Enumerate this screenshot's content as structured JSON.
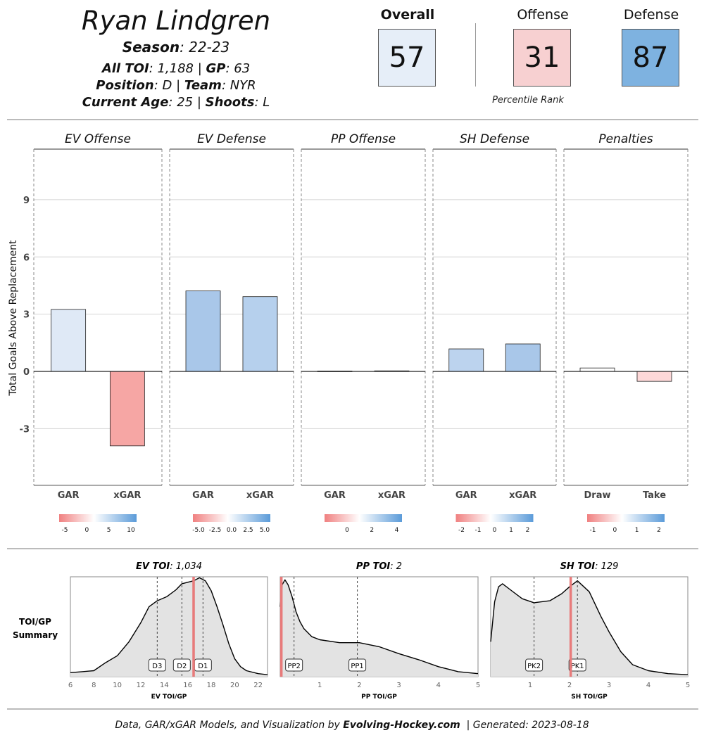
{
  "header": {
    "player_name": "Ryan Lindgren",
    "season": {
      "label": "Season",
      "value": ": 22-23"
    },
    "line2": [
      {
        "label": "All TOI",
        "value": ": 1,188 | "
      },
      {
        "label": "GP",
        "value": ": 63"
      }
    ],
    "line3": [
      {
        "label": "Position",
        "value": ": D | "
      },
      {
        "label": "Team",
        "value": ": NYR"
      }
    ],
    "line4": [
      {
        "label": "Current Age",
        "value": ": 25 | "
      },
      {
        "label": "Shoots",
        "value": ": L"
      }
    ]
  },
  "percentiles": {
    "caption": "Percentile Rank",
    "items": [
      {
        "label": "Overall",
        "value": 57,
        "color": "#e6eef8",
        "bold": true
      },
      {
        "label": "Offense",
        "value": 31,
        "color": "#f7d0d1",
        "bold": false
      },
      {
        "label": "Defense",
        "value": 87,
        "color": "#7eb2e0",
        "bold": false
      }
    ]
  },
  "chart_data": [
    {
      "type": "bar",
      "ylabel": "Total Goals Above Replacement",
      "yticks": [
        -3,
        0,
        3,
        6,
        9
      ],
      "ylim": [
        -5.97,
        11.65
      ],
      "grid": true,
      "panels": [
        {
          "title": "EV Offense",
          "categories": [
            "GAR",
            "xGAR"
          ],
          "values": [
            3.25,
            -3.9
          ],
          "colors": [
            "#dfe9f6",
            "#f6a6a4"
          ],
          "colorbar_ticks": [
            "-5",
            "0",
            "5",
            "10"
          ]
        },
        {
          "title": "EV Defense",
          "categories": [
            "GAR",
            "xGAR"
          ],
          "values": [
            4.22,
            3.92
          ],
          "colors": [
            "#a9c7e9",
            "#b6d0ed"
          ],
          "colorbar_ticks": [
            "-5.0",
            "-2.5",
            "0.0",
            "2.5",
            "5.0"
          ]
        },
        {
          "title": "PP Offense",
          "categories": [
            "GAR",
            "xGAR"
          ],
          "values": [
            0.02,
            0.03
          ],
          "colors": [
            "#f6f8fc",
            "#f2f6fb"
          ],
          "colorbar_ticks": [
            "0",
            "2",
            "4"
          ]
        },
        {
          "title": "SH Defense",
          "categories": [
            "GAR",
            "xGAR"
          ],
          "values": [
            1.18,
            1.44
          ],
          "colors": [
            "#bcd3ee",
            "#a9c7e9"
          ],
          "colorbar_ticks": [
            "-2",
            "-1",
            "0",
            "1",
            "2"
          ]
        },
        {
          "title": "Penalties",
          "categories": [
            "Draw",
            "Take"
          ],
          "values": [
            0.18,
            -0.52
          ],
          "colors": [
            "#ffffff",
            "#fdd8d8"
          ],
          "colorbar_ticks": [
            "-1",
            "0",
            "1",
            "2"
          ]
        }
      ],
      "colorscale": {
        "low": "#f08080",
        "mid": "#ffffff",
        "high": "#5b9bd9"
      }
    },
    {
      "type": "area",
      "row_label": [
        "TOI/GP",
        "Summary"
      ],
      "player_line_color": "#e87b7b",
      "panels": [
        {
          "title_bold": "EV TOI",
          "title_value": ": 1,034",
          "xlabel": "EV TOI/GP",
          "xlim": [
            6,
            22.8
          ],
          "xticks": [
            6,
            8,
            10,
            12,
            14,
            16,
            18,
            20,
            22
          ],
          "player_value": 16.5,
          "markers": [
            {
              "label": "D3",
              "x": 13.4
            },
            {
              "label": "D2",
              "x": 15.5
            },
            {
              "label": "D1",
              "x": 17.3
            }
          ],
          "density": [
            [
              6,
              0.04
            ],
            [
              7,
              0.05
            ],
            [
              8,
              0.06
            ],
            [
              9,
              0.14
            ],
            [
              10,
              0.21
            ],
            [
              11,
              0.35
            ],
            [
              12,
              0.54
            ],
            [
              12.7,
              0.7
            ],
            [
              13.4,
              0.76
            ],
            [
              14.2,
              0.8
            ],
            [
              15,
              0.87
            ],
            [
              15.5,
              0.93
            ],
            [
              16.5,
              0.96
            ],
            [
              17,
              0.99
            ],
            [
              17.5,
              0.96
            ],
            [
              18,
              0.86
            ],
            [
              18.5,
              0.7
            ],
            [
              19,
              0.52
            ],
            [
              19.5,
              0.33
            ],
            [
              20,
              0.18
            ],
            [
              20.5,
              0.1
            ],
            [
              21,
              0.06
            ],
            [
              22,
              0.03
            ],
            [
              22.8,
              0.02
            ]
          ]
        },
        {
          "title_bold": "PP TOI",
          "title_value": ": 2",
          "xlabel": "PP TOI/GP",
          "xlim": [
            0,
            5
          ],
          "xticks": [
            1,
            2,
            3,
            4,
            5
          ],
          "player_value": 0.03,
          "markers": [
            {
              "label": "PP2",
              "x": 0.35
            },
            {
              "label": "PP1",
              "x": 1.95
            }
          ],
          "density": [
            [
              0,
              0.7
            ],
            [
              0.05,
              0.92
            ],
            [
              0.12,
              0.97
            ],
            [
              0.2,
              0.92
            ],
            [
              0.3,
              0.8
            ],
            [
              0.4,
              0.65
            ],
            [
              0.5,
              0.55
            ],
            [
              0.6,
              0.48
            ],
            [
              0.8,
              0.4
            ],
            [
              1,
              0.37
            ],
            [
              1.5,
              0.34
            ],
            [
              2,
              0.34
            ],
            [
              2.5,
              0.3
            ],
            [
              3,
              0.23
            ],
            [
              3.5,
              0.17
            ],
            [
              4,
              0.1
            ],
            [
              4.5,
              0.05
            ],
            [
              5,
              0.03
            ]
          ]
        },
        {
          "title_bold": "SH TOI",
          "title_value": ": 129",
          "xlabel": "SH TOI/GP",
          "xlim": [
            0,
            5
          ],
          "xticks": [
            1,
            2,
            3,
            4,
            5
          ],
          "player_value": 2.03,
          "markers": [
            {
              "label": "PK2",
              "x": 1.1
            },
            {
              "label": "PK1",
              "x": 2.2
            }
          ],
          "density": [
            [
              0,
              0.35
            ],
            [
              0.1,
              0.75
            ],
            [
              0.2,
              0.9
            ],
            [
              0.3,
              0.93
            ],
            [
              0.5,
              0.87
            ],
            [
              0.8,
              0.78
            ],
            [
              1.1,
              0.74
            ],
            [
              1.5,
              0.76
            ],
            [
              1.8,
              0.83
            ],
            [
              2.0,
              0.9
            ],
            [
              2.2,
              0.96
            ],
            [
              2.5,
              0.85
            ],
            [
              2.8,
              0.6
            ],
            [
              3.0,
              0.45
            ],
            [
              3.3,
              0.25
            ],
            [
              3.6,
              0.12
            ],
            [
              4,
              0.06
            ],
            [
              4.5,
              0.03
            ],
            [
              5,
              0.02
            ]
          ]
        }
      ]
    }
  ],
  "footer": {
    "prefix": "Data, GAR/xGAR Models, and Visualization by ",
    "brand": "Evolving-Hockey.com",
    "suffix": "  | Generated: 2023-08-18"
  }
}
